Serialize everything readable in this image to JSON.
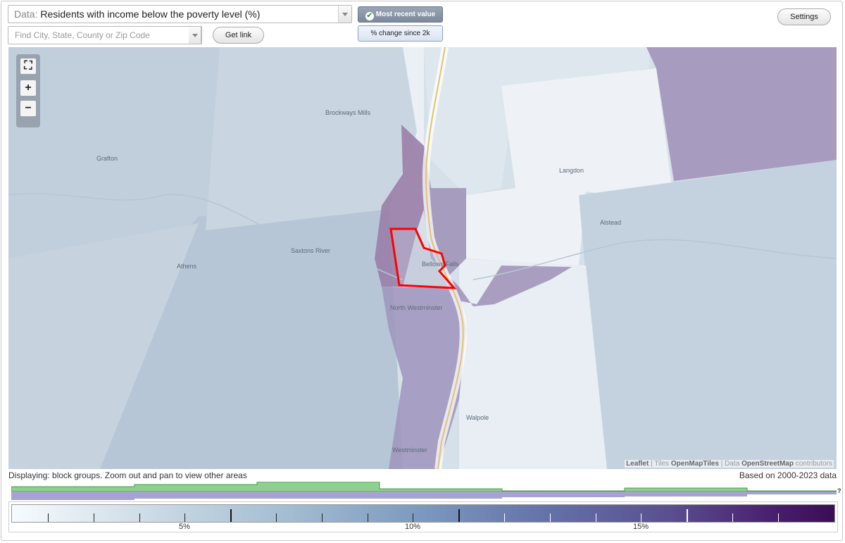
{
  "header": {
    "data_label": "Data:",
    "data_value": "Residents with income below the poverty level (%)",
    "search_placeholder": "Find City, State, County or Zip Code",
    "get_link": "Get link",
    "settings": "Settings",
    "most_recent": "Most recent value",
    "pct_change": "% change since 2k"
  },
  "map": {
    "places": [
      "Brockways Mills",
      "Grafton",
      "Langdon",
      "Alstead",
      "Saxtons River",
      "Athens",
      "Bellows Falls",
      "North Westminster",
      "Walpole",
      "Westminster"
    ],
    "attribution": {
      "leaflet": "Leaflet",
      "tiles_prefix": "Tiles",
      "tiles": "OpenMapTiles",
      "data_prefix": "Data",
      "data": "OpenStreetMap",
      "contributors": "contributors"
    },
    "zoom_controls": [
      "fullscreen-icon",
      "zoom-in-icon",
      "zoom-out-icon"
    ]
  },
  "footer": {
    "displaying": "Displaying: block groups. Zoom out and pan to view other areas",
    "based_on": "Based on 2000-2023 data"
  },
  "legend": {
    "labels": [
      "5%",
      "10%",
      "15%"
    ],
    "colors": {
      "low": "#f7fbff",
      "mid": "#7b98bf",
      "high": "#3b0d55"
    }
  },
  "colors": {
    "selected_outline": "#ff0000",
    "histogram_green": "#8fcf8f",
    "histogram_purple": "#a7a3d0"
  }
}
